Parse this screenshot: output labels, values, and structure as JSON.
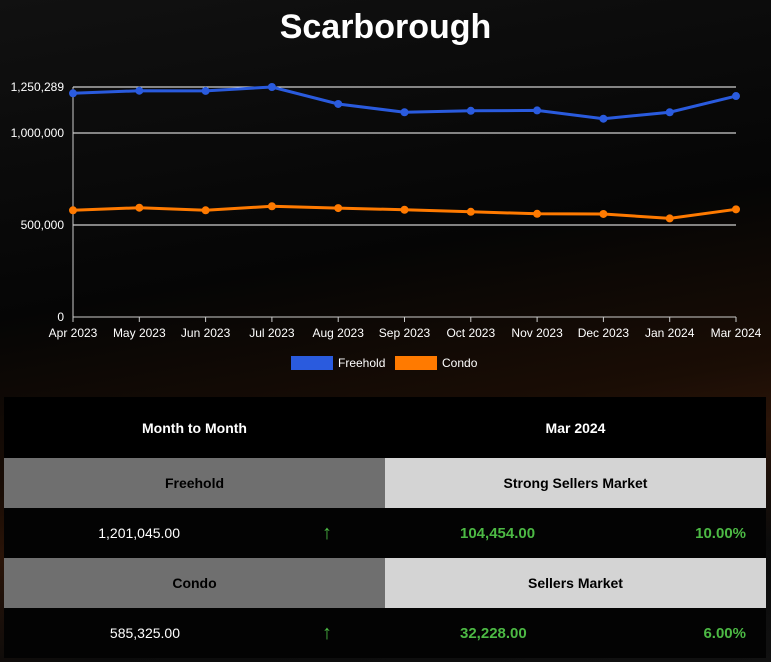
{
  "title": "Scarborough",
  "colors": {
    "freehold": "#2a5bde",
    "condo": "#ff7a00",
    "up": "#4cb944"
  },
  "chart_data": {
    "type": "line",
    "categories": [
      "Apr 2023",
      "May 2023",
      "Jun 2023",
      "Jul 2023",
      "Aug 2023",
      "Sep 2023",
      "Oct 2023",
      "Nov 2023",
      "Dec 2023",
      "Jan 2024",
      "Mar 2024"
    ],
    "series": [
      {
        "name": "Freehold",
        "values": [
          1216000,
          1230000,
          1229000,
          1250289,
          1158000,
          1113000,
          1121000,
          1123000,
          1078000,
          1113000,
          1201045
        ]
      },
      {
        "name": "Condo",
        "values": [
          580000,
          594000,
          580000,
          602000,
          592000,
          583000,
          572000,
          561000,
          560000,
          536000,
          585325
        ]
      }
    ],
    "yticks": [
      0,
      500000,
      1000000,
      1250289
    ],
    "ytick_labels": [
      "0",
      "500,000",
      "1,000,000",
      "1,250,289"
    ],
    "ylim": [
      0,
      1250289
    ],
    "grid": true,
    "legend": "bottom"
  },
  "table": {
    "header": {
      "left": "Month to Month",
      "right": "Mar 2024"
    },
    "rows": [
      {
        "type": "Freehold",
        "market": "Strong Sellers Market",
        "price": "1,201,045.00",
        "change": "104,454.00",
        "percent": "10.00%",
        "direction": "up"
      },
      {
        "type": "Condo",
        "market": "Sellers Market",
        "price": "585,325.00",
        "change": "32,228.00",
        "percent": "6.00%",
        "direction": "up"
      }
    ]
  }
}
